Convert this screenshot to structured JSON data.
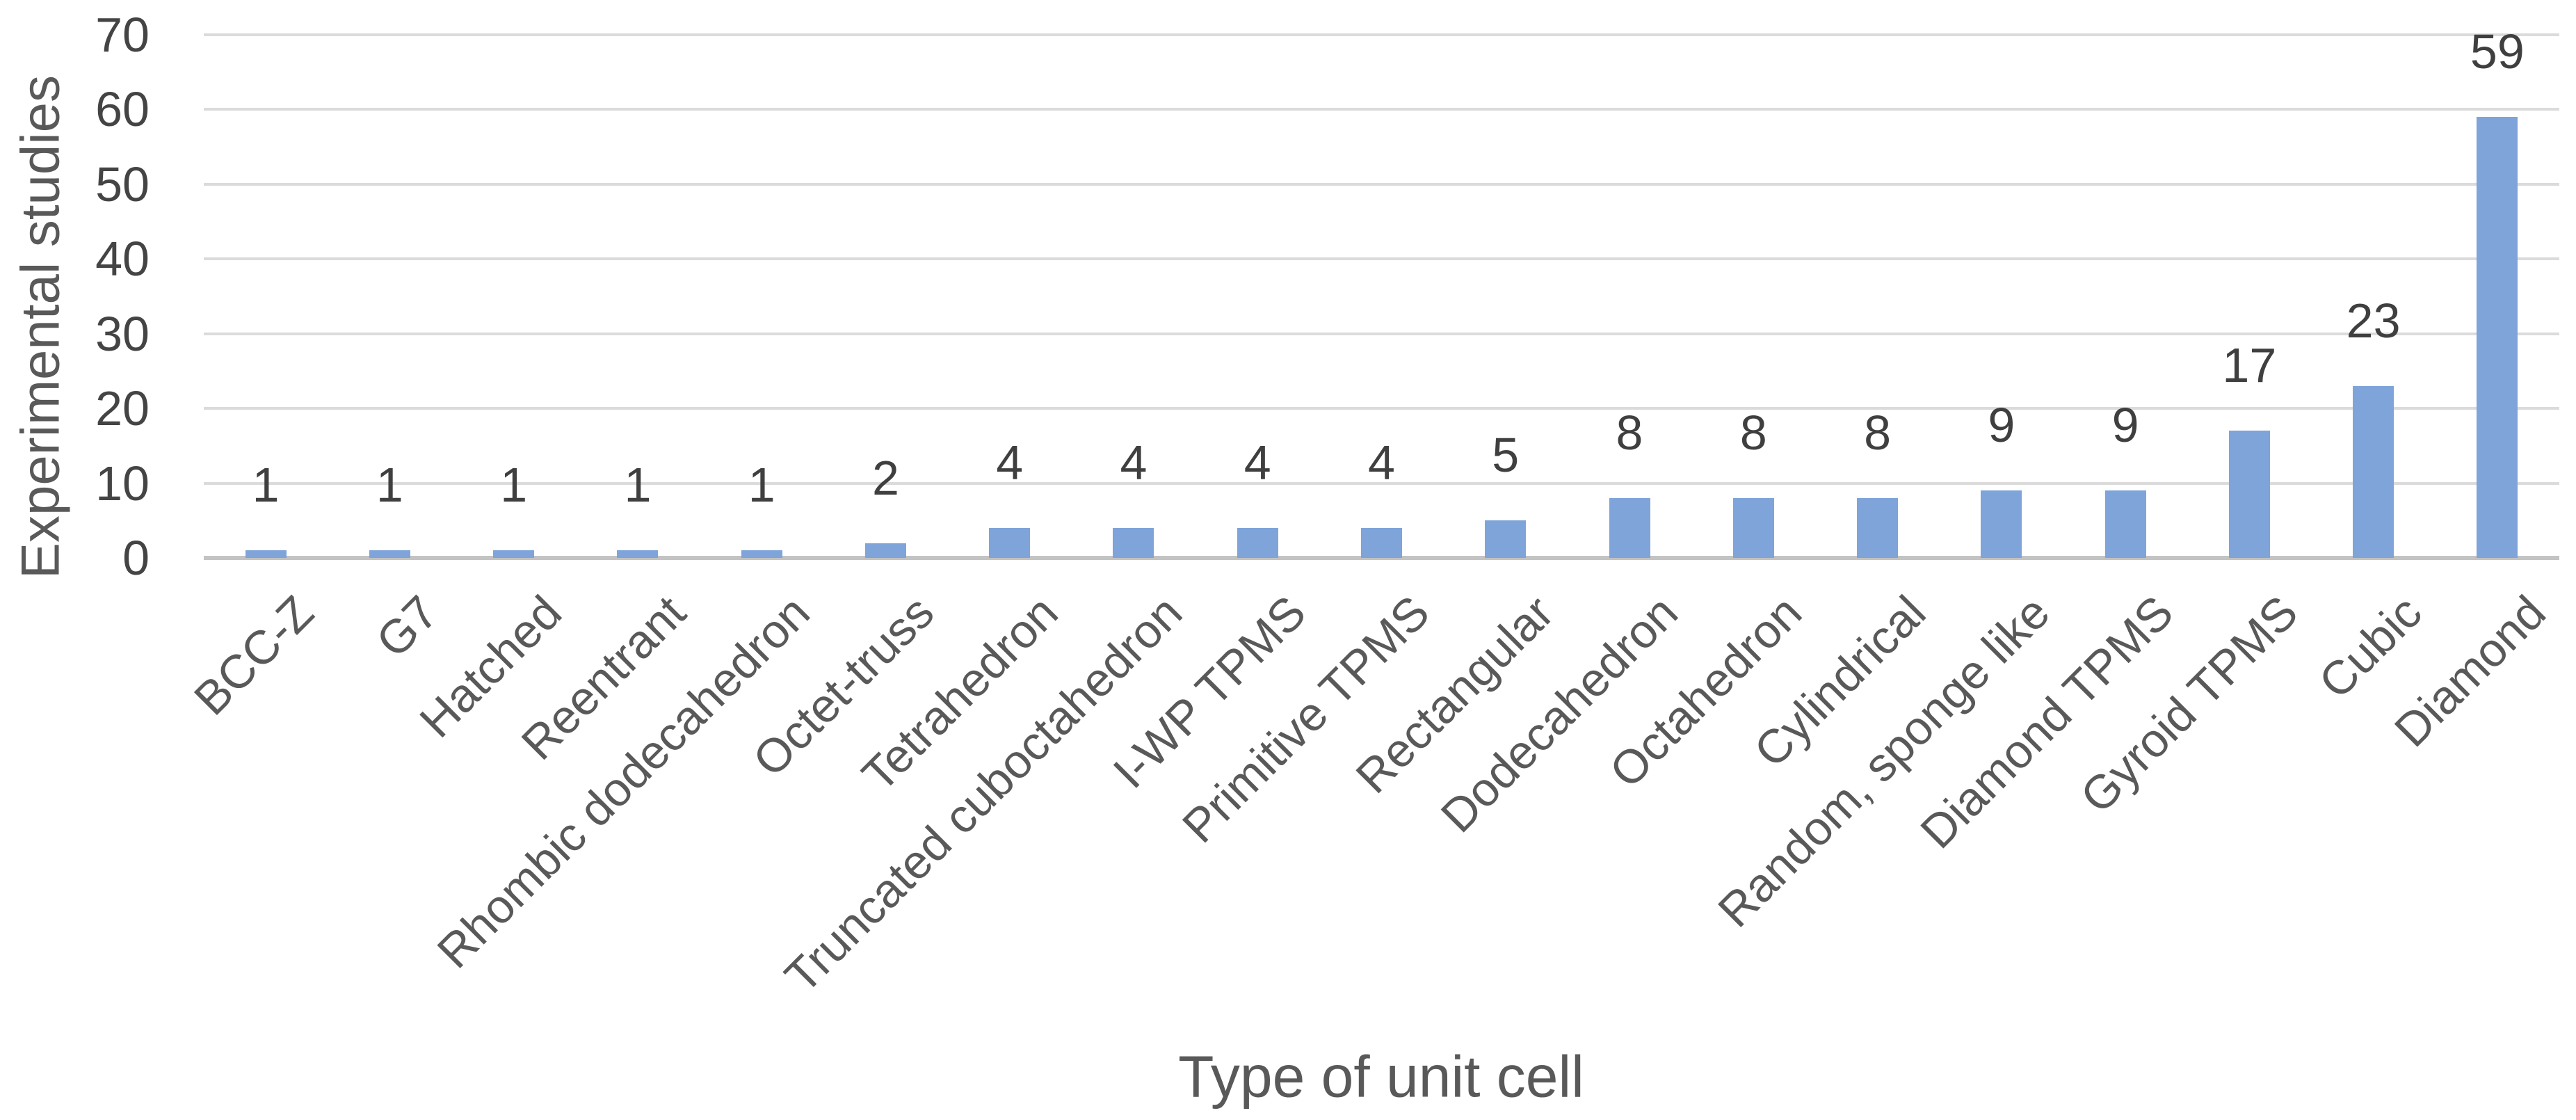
{
  "chart_data": {
    "type": "bar",
    "title": "",
    "xlabel": "Type of unit cell",
    "ylabel": "Experimental studies",
    "categories": [
      "BCC-Z",
      "G7",
      "Hatched",
      "Reentrant",
      "Rhombic dodecahedron",
      "Octet-truss",
      "Tetrahedron",
      "Truncated cuboctahedron",
      "I-WP TPMS",
      "Primitive TPMS",
      "Rectangular",
      "Dodecahedron",
      "Octahedron",
      "Cylindrical",
      "Random, sponge like",
      "Diamond TPMS",
      "Gyroid TPMS",
      "Cubic",
      "Diamond"
    ],
    "values": [
      1,
      1,
      1,
      1,
      1,
      2,
      4,
      4,
      4,
      4,
      5,
      8,
      8,
      8,
      9,
      9,
      17,
      23,
      59
    ],
    "ylim": [
      0,
      70
    ],
    "ytick_step": 10,
    "grid": true,
    "legend_position": "none",
    "data_labels": "outside-end",
    "colors": {
      "bar": "#7ea4da",
      "tick_text": "#444444",
      "data_label_text": "#3f3f3f",
      "category_text": "#595959",
      "axis_title_text": "#595959",
      "gridline": "#dbdbdb",
      "axis_line": "#c3c3c3",
      "background": "#ffffff"
    }
  }
}
